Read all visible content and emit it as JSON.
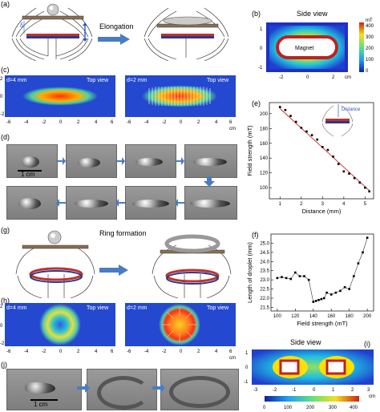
{
  "panels": {
    "a": {
      "label": "(a)",
      "elongation": "Elongation",
      "delta_symbol": "δ"
    },
    "b": {
      "label": "(b)",
      "title": "Side view",
      "magnet_label": "Magnet",
      "x_ticks": [
        "-2",
        "0",
        "2"
      ],
      "y_ticks": [
        "1",
        "0",
        "-1"
      ],
      "x_unit": "cm",
      "colorbar_unit": "mT",
      "colorbar_ticks": [
        "400",
        "300",
        "200",
        "100",
        "0"
      ]
    },
    "c": {
      "label": "(c)",
      "left_d": "d=4 mm",
      "right_d": "d=2 mm",
      "top_view": "Top view",
      "x_ticks": [
        "-6",
        "-4",
        "-2",
        "0",
        "2",
        "4",
        "6"
      ],
      "y_ticks": [
        "2",
        "0",
        "-2"
      ],
      "x_unit": "cm"
    },
    "d": {
      "label": "(d)",
      "scale": "1 cm"
    },
    "e": {
      "label": "(e)",
      "distance_label": "Distance"
    },
    "f": {
      "label": "(f)"
    },
    "g": {
      "label": "(g)",
      "ring_formation": "Ring formation"
    },
    "h": {
      "label": "(h)",
      "left_d": "d=4 mm",
      "right_d": "d=2 mm",
      "top_view": "Top view",
      "x_ticks": [
        "-6",
        "-4",
        "-2",
        "0",
        "2",
        "4",
        "6"
      ],
      "y_ticks": [
        "2",
        "0",
        "-2"
      ],
      "x_unit": "cm"
    },
    "i": {
      "label": "(i)",
      "title": "Side view",
      "x_ticks": [
        "-3",
        "-2",
        "-1",
        "0",
        "1",
        "2",
        "3"
      ],
      "y_ticks": [
        "1",
        "0",
        "-1"
      ],
      "x_unit": "cm",
      "colorbar_ticks": [
        "0",
        "100",
        "200",
        "300",
        "400"
      ]
    },
    "j": {
      "label": "(j)",
      "scale": "1 cm"
    }
  },
  "chart_data": [
    {
      "type": "scatter",
      "panel": "e",
      "xlabel": "Distance (mm)",
      "ylabel": "Field strength (mT)",
      "xlim": [
        0.5,
        5.4
      ],
      "ylim": [
        85,
        215
      ],
      "x_ticks": [
        1,
        2,
        3,
        4,
        5
      ],
      "y_ticks": [
        100,
        120,
        140,
        160,
        180,
        200
      ],
      "series": [
        {
          "x": [
            1.0,
            1.25,
            1.5,
            1.75,
            2.0,
            2.25,
            2.5,
            2.75,
            3.0,
            3.25,
            3.5,
            3.75,
            4.0,
            4.25,
            4.5,
            4.75,
            5.0,
            5.2
          ],
          "y": [
            209,
            205,
            197,
            189,
            181,
            176,
            171,
            165,
            155,
            151,
            142,
            132,
            122,
            119,
            113,
            107,
            100,
            95
          ]
        }
      ],
      "fit_line": {
        "x": [
          1.0,
          5.2
        ],
        "y": [
          207,
          96
        ]
      }
    },
    {
      "type": "line",
      "panel": "f",
      "xlabel": "Field strength (mT)",
      "ylabel": "Length of droplet (mm)",
      "xlim": [
        93,
        207
      ],
      "ylim": [
        21.3,
        25.5
      ],
      "x_ticks": [
        100,
        120,
        140,
        160,
        180,
        200
      ],
      "y_ticks": [
        21.5,
        22.0,
        22.5,
        23.0,
        23.5,
        24.0,
        24.5,
        25.0
      ],
      "series": [
        {
          "x": [
            100,
            105,
            110,
            115,
            120,
            125,
            130,
            135,
            140,
            143,
            146,
            149,
            152,
            155,
            160,
            165,
            170,
            175,
            180,
            185,
            190,
            195,
            200
          ],
          "y": [
            23.1,
            23.15,
            23.1,
            23.05,
            23.4,
            23.2,
            23.2,
            23.0,
            21.8,
            21.85,
            21.9,
            21.95,
            22.0,
            22.3,
            22.2,
            22.3,
            22.4,
            22.6,
            22.5,
            23.2,
            23.9,
            24.5,
            25.3
          ]
        }
      ]
    }
  ]
}
